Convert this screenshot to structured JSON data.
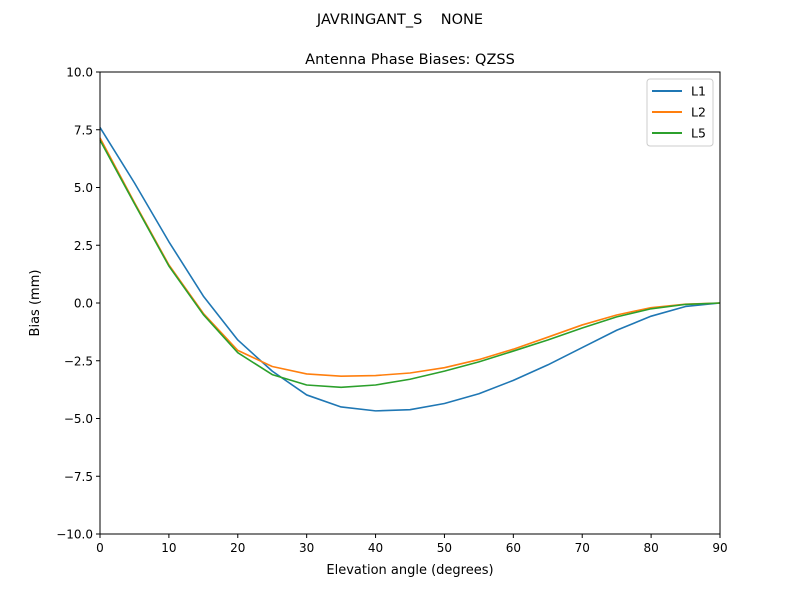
{
  "figure": {
    "suptitle": "JAVRINGANT_S    NONE"
  },
  "chart_data": {
    "type": "line",
    "title": "Antenna Phase Biases: QZSS",
    "xlabel": "Elevation angle (degrees)",
    "ylabel": "Bias (mm)",
    "xlim": [
      0,
      90
    ],
    "ylim": [
      -10,
      10
    ],
    "xticks": [
      0,
      10,
      20,
      30,
      40,
      50,
      60,
      70,
      80,
      90
    ],
    "xtick_labels": [
      "0",
      "10",
      "20",
      "30",
      "40",
      "50",
      "60",
      "70",
      "80",
      "90"
    ],
    "yticks": [
      10,
      7.5,
      5,
      2.5,
      0,
      -2.5,
      -5,
      -7.5,
      -10
    ],
    "ytick_labels": [
      "10.0",
      "7.5",
      "5.0",
      "2.5",
      "0.0",
      "−2.5",
      "−5.0",
      "−7.5",
      "−10.0"
    ],
    "grid": false,
    "legend_position": "top-right",
    "x": [
      0,
      5,
      10,
      15,
      20,
      25,
      30,
      35,
      40,
      45,
      50,
      55,
      60,
      65,
      70,
      75,
      80,
      85,
      90
    ],
    "series": [
      {
        "name": "L1",
        "color": "#1f77b4",
        "values": [
          7.6,
          5.2,
          2.65,
          0.3,
          -1.6,
          -2.95,
          -3.98,
          -4.5,
          -4.67,
          -4.62,
          -4.35,
          -3.93,
          -3.35,
          -2.68,
          -1.93,
          -1.18,
          -0.57,
          -0.15,
          0.0
        ]
      },
      {
        "name": "L2",
        "color": "#ff7f0e",
        "values": [
          7.15,
          4.35,
          1.65,
          -0.45,
          -2.05,
          -2.75,
          -3.07,
          -3.17,
          -3.14,
          -3.03,
          -2.8,
          -2.45,
          -2.0,
          -1.48,
          -0.95,
          -0.52,
          -0.2,
          -0.05,
          0.0
        ]
      },
      {
        "name": "L5",
        "color": "#2ca02c",
        "values": [
          7.05,
          4.3,
          1.6,
          -0.5,
          -2.15,
          -3.1,
          -3.55,
          -3.65,
          -3.55,
          -3.3,
          -2.95,
          -2.55,
          -2.08,
          -1.6,
          -1.08,
          -0.6,
          -0.25,
          -0.06,
          0.0
        ]
      }
    ]
  }
}
